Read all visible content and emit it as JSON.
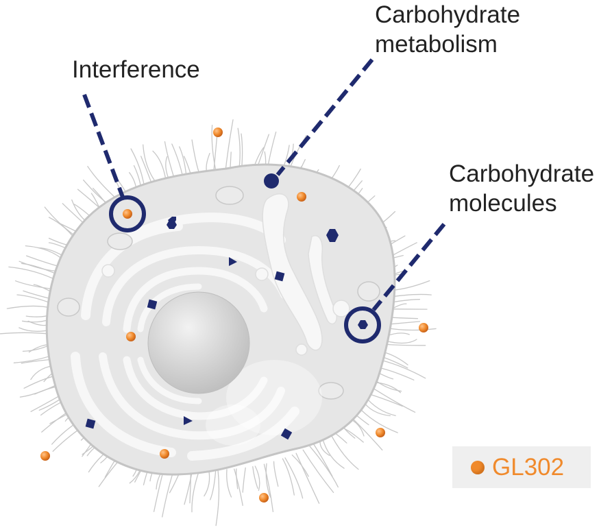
{
  "labels": {
    "interference": "Interference",
    "carbohydrate_metabolism_line1": "Carbohydrate",
    "carbohydrate_metabolism_line2": "metabolism",
    "carbohydrate_molecules_line1": "Carbohydrate",
    "carbohydrate_molecules_line2": "molecules"
  },
  "legend": {
    "item": "GL302",
    "color": "#f08a2c"
  },
  "colors": {
    "cell_fill": "#e6e6e6",
    "cell_outline": "#c4c4c4",
    "organelle_fill": "#f7f7f7",
    "nucleus_fill": "#cfcfcf",
    "marker_navy": "#1f2a6e",
    "orange": "#f08a2c",
    "legend_bg": "#efefef"
  },
  "icons": {
    "gl302": "orange-sphere",
    "carbohydrate_molecule": "navy-hexagon",
    "metabolite_square": "navy-diamond",
    "metabolite_triangle": "navy-triangle",
    "callout_marker": "navy-ring"
  }
}
